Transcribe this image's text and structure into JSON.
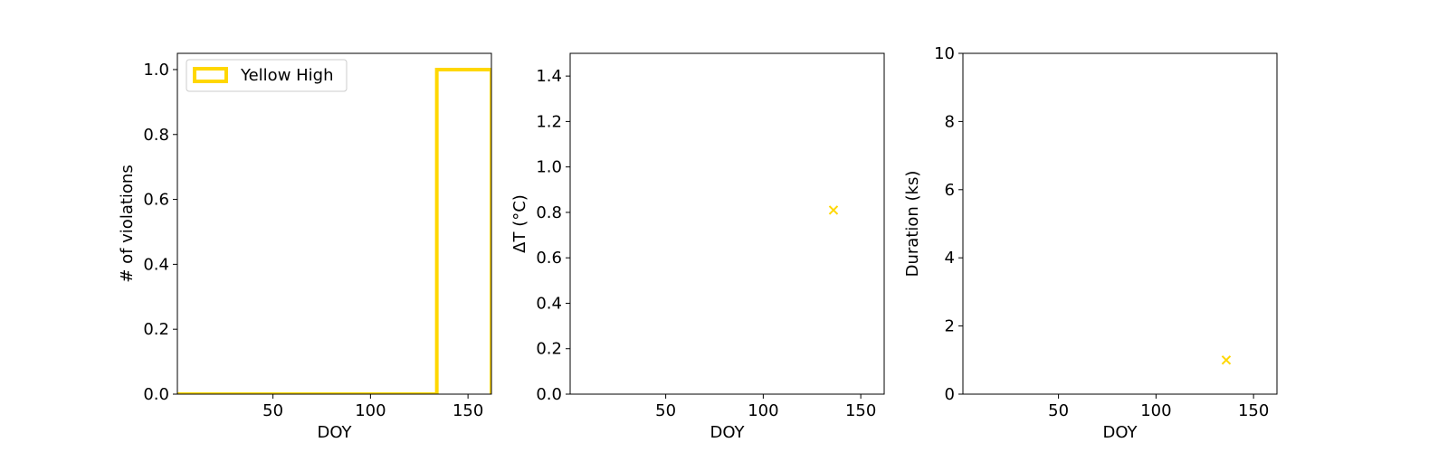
{
  "colors": {
    "series": "#FFD700",
    "axes": "#000000",
    "background": "#ffffff"
  },
  "chart_data": [
    {
      "type": "histogram",
      "xlabel": "DOY",
      "ylabel": "# of violations",
      "xlim": [
        1,
        162
      ],
      "ylim": [
        0,
        1.05
      ],
      "xticks": [
        50,
        100,
        150
      ],
      "yticks": [
        0.0,
        0.2,
        0.4,
        0.6,
        0.8,
        1.0
      ],
      "ytick_labels": [
        "0.0",
        "0.2",
        "0.4",
        "0.6",
        "0.8",
        "1.0"
      ],
      "grid": false,
      "legend": {
        "position": "upper left",
        "entries": [
          "Yellow High"
        ]
      },
      "series": [
        {
          "name": "Yellow High",
          "style": "step",
          "bins": [
            {
              "x0": 1,
              "x1": 134,
              "count": 0
            },
            {
              "x0": 134,
              "x1": 162,
              "count": 1
            }
          ]
        }
      ]
    },
    {
      "type": "scatter",
      "xlabel": "DOY",
      "ylabel": "ΔT ($^\\circ$C)",
      "xlabel_display": "DOY",
      "ylabel_display": "ΔT (°C)",
      "xlim": [
        1,
        162
      ],
      "ylim": [
        0,
        1.5
      ],
      "xticks": [
        50,
        100,
        150
      ],
      "yticks": [
        0.0,
        0.2,
        0.4,
        0.6,
        0.8,
        1.0,
        1.2,
        1.4
      ],
      "ytick_labels": [
        "0.0",
        "0.2",
        "0.4",
        "0.6",
        "0.8",
        "1.0",
        "1.2",
        "1.4"
      ],
      "grid": false,
      "marker": "x",
      "series": [
        {
          "points": [
            {
              "x": 136,
              "y": 0.81
            }
          ]
        }
      ]
    },
    {
      "type": "scatter",
      "xlabel": "DOY",
      "ylabel": "Duration (ks)",
      "xlim": [
        1,
        162
      ],
      "ylim": [
        0,
        10
      ],
      "xticks": [
        50,
        100,
        150
      ],
      "yticks": [
        0,
        2,
        4,
        6,
        8,
        10
      ],
      "ytick_labels": [
        "0",
        "2",
        "4",
        "6",
        "8",
        "10"
      ],
      "grid": false,
      "marker": "x",
      "series": [
        {
          "points": [
            {
              "x": 136,
              "y": 1.0
            }
          ]
        }
      ]
    }
  ]
}
